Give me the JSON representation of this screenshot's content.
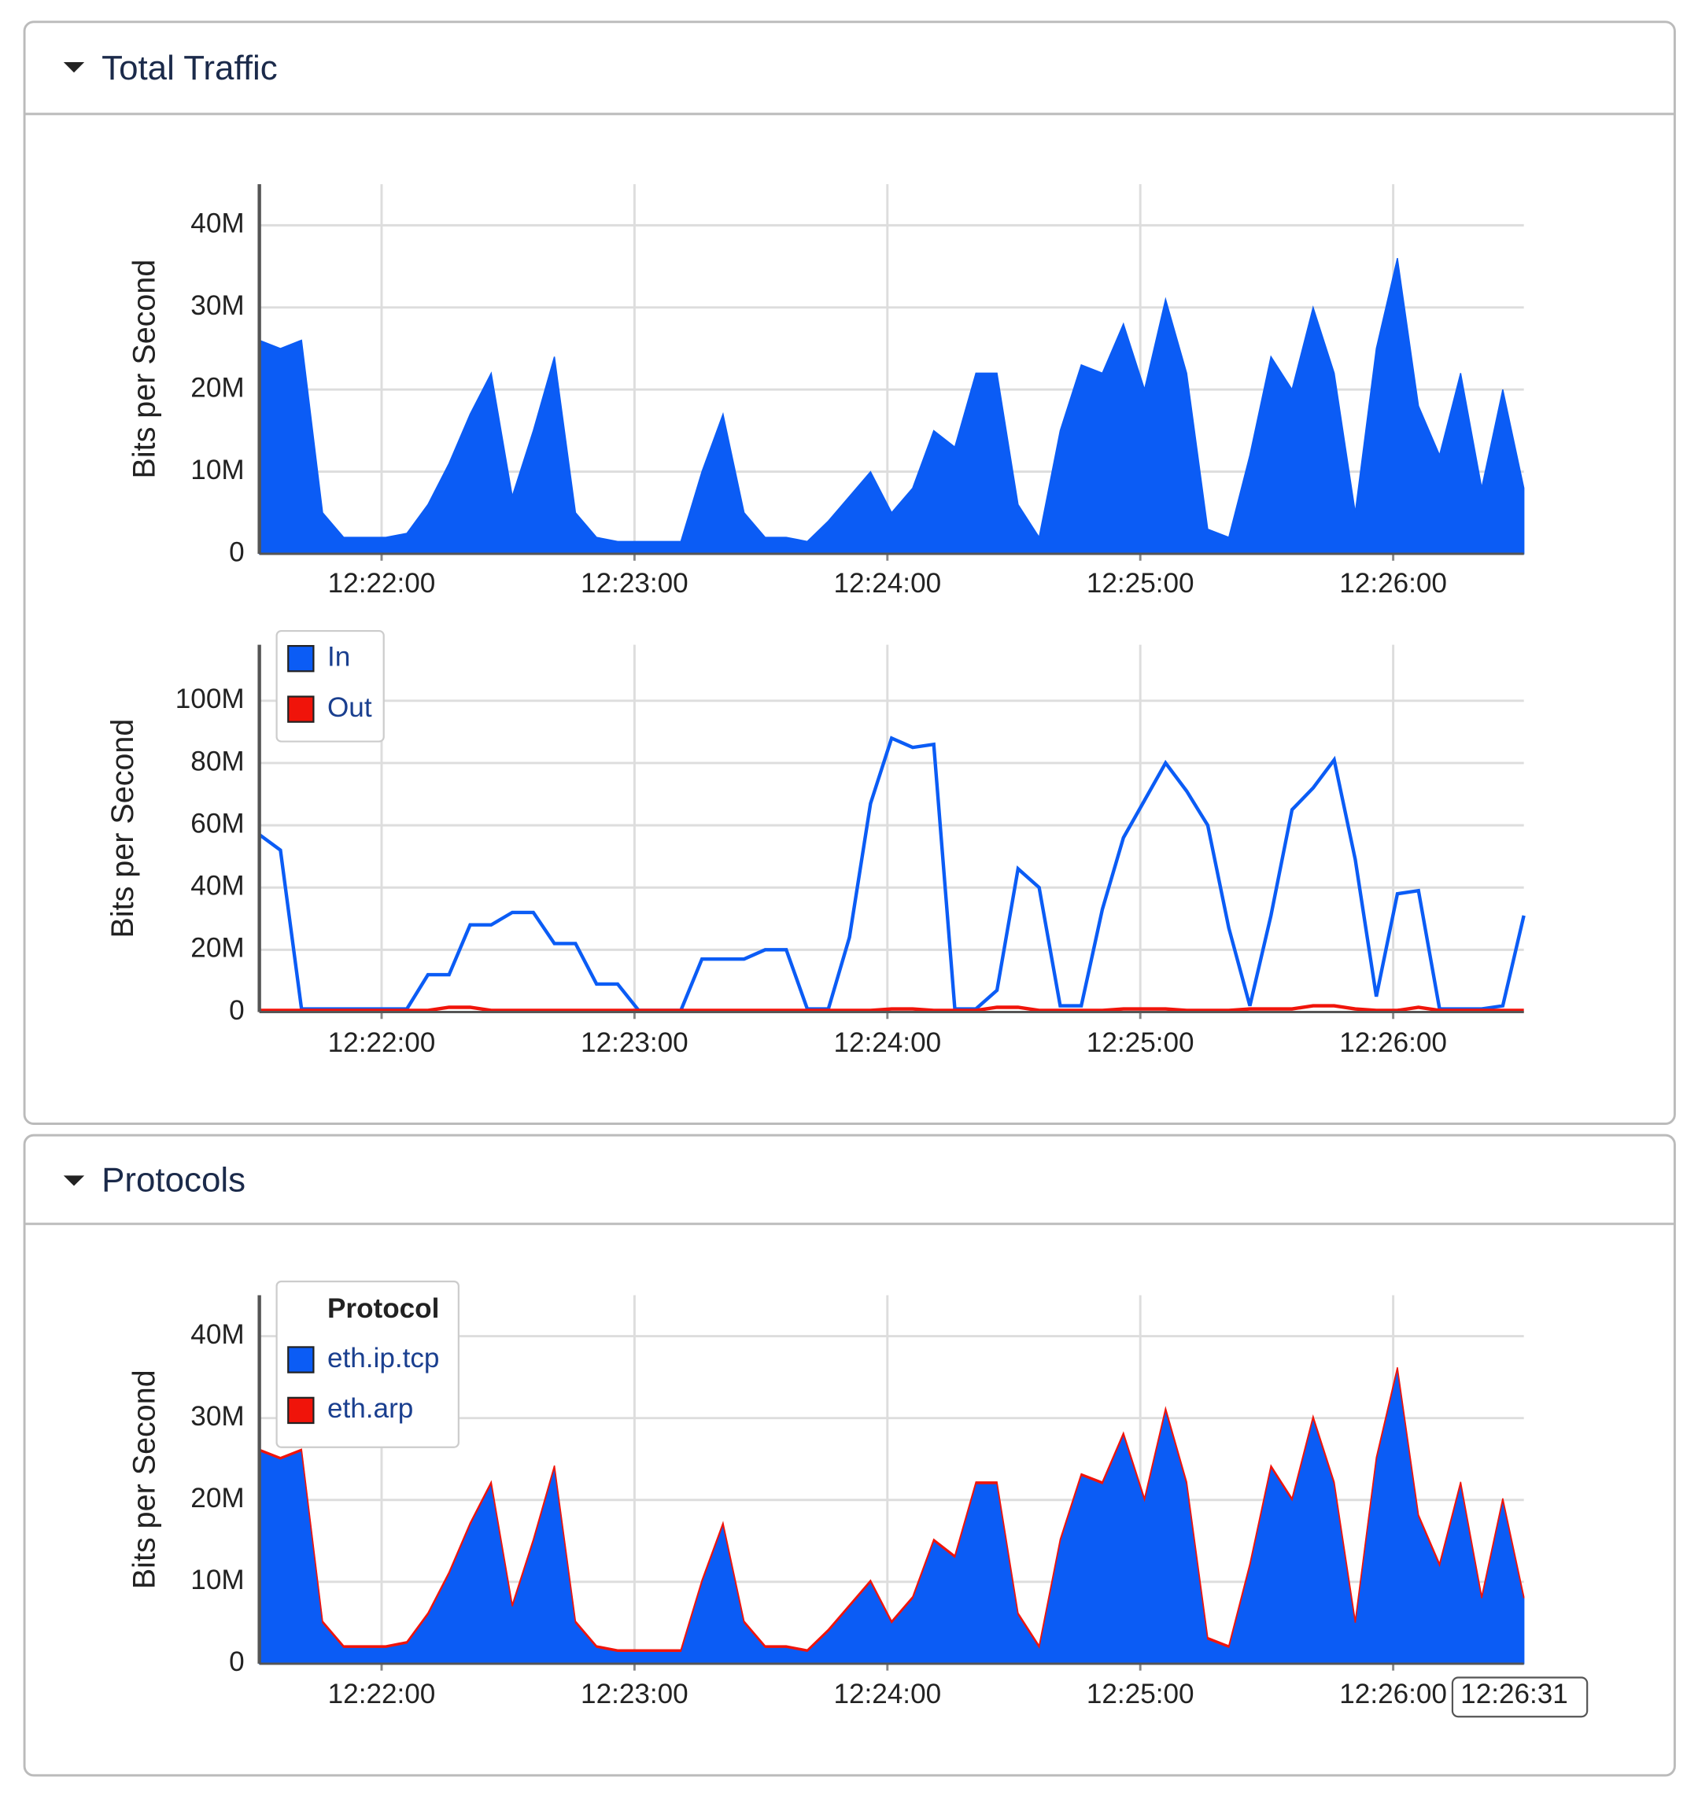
{
  "panels": [
    {
      "title": "Total Traffic"
    },
    {
      "title": "Protocols"
    }
  ],
  "chart_data": [
    {
      "type": "area",
      "ylabel": "Bits per Second",
      "x": [
        "12:21:31",
        "12:21:36",
        "12:21:41",
        "12:21:46",
        "12:21:51",
        "12:21:56",
        "12:22:01",
        "12:22:06",
        "12:22:11",
        "12:22:16",
        "12:22:21",
        "12:22:26",
        "12:22:31",
        "12:22:36",
        "12:22:41",
        "12:22:46",
        "12:22:51",
        "12:22:56",
        "12:23:01",
        "12:23:06",
        "12:23:11",
        "12:23:16",
        "12:23:21",
        "12:23:26",
        "12:23:31",
        "12:23:36",
        "12:23:41",
        "12:23:46",
        "12:23:51",
        "12:23:56",
        "12:24:01",
        "12:24:06",
        "12:24:11",
        "12:24:16",
        "12:24:21",
        "12:24:26",
        "12:24:31",
        "12:24:36",
        "12:24:41",
        "12:24:46",
        "12:24:51",
        "12:24:56",
        "12:25:01",
        "12:25:06",
        "12:25:11",
        "12:25:16",
        "12:25:21",
        "12:25:26",
        "12:25:31",
        "12:25:36",
        "12:25:41",
        "12:25:46",
        "12:25:51",
        "12:25:56",
        "12:26:01",
        "12:26:06",
        "12:26:11",
        "12:26:16",
        "12:26:21",
        "12:26:26",
        "12:26:31"
      ],
      "xlim": [
        "12:21:31",
        "12:26:31"
      ],
      "xticks": [
        "12:22:00",
        "12:23:00",
        "12:24:00",
        "12:25:00",
        "12:26:00"
      ],
      "ylim": [
        0,
        45
      ],
      "yticks": [
        0,
        {
          "value": 10,
          "label": "10M"
        },
        {
          "value": 20,
          "label": "20M"
        },
        {
          "value": 30,
          "label": "30M"
        },
        {
          "value": 40,
          "label": "40M"
        }
      ],
      "grid": true,
      "series": [
        {
          "color": "#0b5cf5",
          "values": [
            26,
            25,
            26,
            5,
            2,
            2,
            2,
            2.5,
            6,
            11,
            17,
            22,
            7,
            15,
            24,
            5,
            2,
            1.5,
            1.5,
            1.5,
            1.5,
            10,
            17,
            5,
            2,
            2,
            1.5,
            4,
            7,
            10,
            5,
            8,
            15,
            13,
            22,
            22,
            6,
            2,
            15,
            23,
            22,
            28,
            20,
            31,
            22,
            3,
            2,
            12,
            24,
            20,
            30,
            22,
            5,
            25,
            36,
            18,
            12,
            22,
            8,
            20,
            8
          ]
        }
      ]
    },
    {
      "type": "line",
      "ylabel": "Bits per Second",
      "x": [
        "12:21:31",
        "12:21:36",
        "12:21:41",
        "12:21:46",
        "12:21:51",
        "12:21:56",
        "12:22:01",
        "12:22:06",
        "12:22:11",
        "12:22:16",
        "12:22:21",
        "12:22:26",
        "12:22:31",
        "12:22:36",
        "12:22:41",
        "12:22:46",
        "12:22:51",
        "12:22:56",
        "12:23:01",
        "12:23:06",
        "12:23:11",
        "12:23:16",
        "12:23:21",
        "12:23:26",
        "12:23:31",
        "12:23:36",
        "12:23:41",
        "12:23:46",
        "12:23:51",
        "12:23:56",
        "12:24:01",
        "12:24:06",
        "12:24:11",
        "12:24:16",
        "12:24:21",
        "12:24:26",
        "12:24:31",
        "12:24:36",
        "12:24:41",
        "12:24:46",
        "12:24:51",
        "12:24:56",
        "12:25:01",
        "12:25:06",
        "12:25:11",
        "12:25:16",
        "12:25:21",
        "12:25:26",
        "12:25:31",
        "12:25:36",
        "12:25:41",
        "12:25:46",
        "12:25:51",
        "12:25:56",
        "12:26:01",
        "12:26:06",
        "12:26:11",
        "12:26:16",
        "12:26:21",
        "12:26:26",
        "12:26:31"
      ],
      "xlim": [
        "12:21:31",
        "12:26:31"
      ],
      "xticks": [
        "12:22:00",
        "12:23:00",
        "12:24:00",
        "12:25:00",
        "12:26:00"
      ],
      "ylim": [
        0,
        118
      ],
      "yticks": [
        0,
        {
          "value": 20,
          "label": "20M"
        },
        {
          "value": 40,
          "label": "40M"
        },
        {
          "value": 60,
          "label": "60M"
        },
        {
          "value": 80,
          "label": "80M"
        },
        {
          "value": 100,
          "label": "100M"
        }
      ],
      "grid": true,
      "legend": "upper left",
      "series": [
        {
          "name": "In",
          "color": "#0b5cf5",
          "values": [
            57,
            52,
            1,
            1,
            1,
            1,
            1,
            1,
            12,
            12,
            28,
            28,
            32,
            32,
            22,
            22,
            9,
            9,
            0.5,
            0.5,
            0.5,
            17,
            17,
            17,
            20,
            20,
            1,
            1,
            24,
            67,
            88,
            85,
            86,
            1,
            1,
            7,
            46,
            40,
            2,
            2,
            33,
            56,
            68,
            80,
            71,
            60,
            27,
            2,
            31,
            65,
            72,
            81,
            49,
            5,
            38,
            39,
            1,
            1,
            1,
            2,
            31
          ]
        },
        {
          "name": "Out",
          "color": "#f0140a",
          "values": [
            0.5,
            0.5,
            0.5,
            0.5,
            0.5,
            0.5,
            0.5,
            0.5,
            0.5,
            1.5,
            1.5,
            0.5,
            0.5,
            0.5,
            0.5,
            0.5,
            0.5,
            0.5,
            0.5,
            0.5,
            0.5,
            0.5,
            0.5,
            0.5,
            0.5,
            0.5,
            0.5,
            0.5,
            0.5,
            0.5,
            1,
            1,
            0.5,
            0.5,
            0.5,
            1.5,
            1.5,
            0.5,
            0.5,
            0.5,
            0.5,
            1,
            1,
            1,
            0.5,
            0.5,
            0.5,
            1,
            1,
            1,
            2,
            2,
            1,
            0.5,
            0.5,
            1.5,
            0.5,
            0.5,
            0.5,
            0.5,
            0.5
          ]
        }
      ]
    },
    {
      "type": "area",
      "stacked": true,
      "ylabel": "Bits per Second",
      "x": [
        "12:21:31",
        "12:21:36",
        "12:21:41",
        "12:21:46",
        "12:21:51",
        "12:21:56",
        "12:22:01",
        "12:22:06",
        "12:22:11",
        "12:22:16",
        "12:22:21",
        "12:22:26",
        "12:22:31",
        "12:22:36",
        "12:22:41",
        "12:22:46",
        "12:22:51",
        "12:22:56",
        "12:23:01",
        "12:23:06",
        "12:23:11",
        "12:23:16",
        "12:23:21",
        "12:23:26",
        "12:23:31",
        "12:23:36",
        "12:23:41",
        "12:23:46",
        "12:23:51",
        "12:23:56",
        "12:24:01",
        "12:24:06",
        "12:24:11",
        "12:24:16",
        "12:24:21",
        "12:24:26",
        "12:24:31",
        "12:24:36",
        "12:24:41",
        "12:24:46",
        "12:24:51",
        "12:24:56",
        "12:25:01",
        "12:25:06",
        "12:25:11",
        "12:25:16",
        "12:25:21",
        "12:25:26",
        "12:25:31",
        "12:25:36",
        "12:25:41",
        "12:25:46",
        "12:25:51",
        "12:25:56",
        "12:26:01",
        "12:26:06",
        "12:26:11",
        "12:26:16",
        "12:26:21",
        "12:26:26",
        "12:26:31"
      ],
      "xlim": [
        "12:21:31",
        "12:26:31"
      ],
      "xticks": [
        "12:22:00",
        "12:23:00",
        "12:24:00",
        "12:25:00",
        "12:26:00"
      ],
      "ylim": [
        0,
        45
      ],
      "yticks": [
        0,
        {
          "value": 10,
          "label": "10M"
        },
        {
          "value": 20,
          "label": "20M"
        },
        {
          "value": 30,
          "label": "30M"
        },
        {
          "value": 40,
          "label": "40M"
        }
      ],
      "grid": true,
      "legend": "upper left",
      "legend_title": "Protocol",
      "hover_label": "12:26:31",
      "series": [
        {
          "name": "eth.ip.tcp",
          "color": "#0b5cf5",
          "values": [
            26,
            25,
            26,
            5,
            2,
            2,
            2,
            2.5,
            6,
            11,
            17,
            22,
            7,
            15,
            24,
            5,
            2,
            1.5,
            1.5,
            1.5,
            1.5,
            10,
            17,
            5,
            2,
            2,
            1.5,
            4,
            7,
            10,
            5,
            8,
            15,
            13,
            22,
            22,
            6,
            2,
            15,
            23,
            22,
            28,
            20,
            31,
            22,
            3,
            2,
            12,
            24,
            20,
            30,
            22,
            5,
            25,
            36,
            18,
            12,
            22,
            8,
            20,
            8
          ]
        },
        {
          "name": "eth.arp",
          "color": "#f0140a",
          "values": [
            0.2,
            0.2,
            0.2,
            0.2,
            0.2,
            0.2,
            0.2,
            0.2,
            0.2,
            0.2,
            0.2,
            0.2,
            0.2,
            0.2,
            0.2,
            0.2,
            0.2,
            0.2,
            0.2,
            0.2,
            0.2,
            0.2,
            0.2,
            0.2,
            0.2,
            0.2,
            0.2,
            0.2,
            0.2,
            0.2,
            0.2,
            0.2,
            0.2,
            0.2,
            0.2,
            0.2,
            0.2,
            0.2,
            0.2,
            0.2,
            0.2,
            0.2,
            0.2,
            0.2,
            0.2,
            0.2,
            0.2,
            0.2,
            0.2,
            0.2,
            0.2,
            0.2,
            0.2,
            0.2,
            0.2,
            0.2,
            0.2,
            0.2,
            0.2,
            0.2,
            0.2
          ]
        }
      ]
    }
  ]
}
